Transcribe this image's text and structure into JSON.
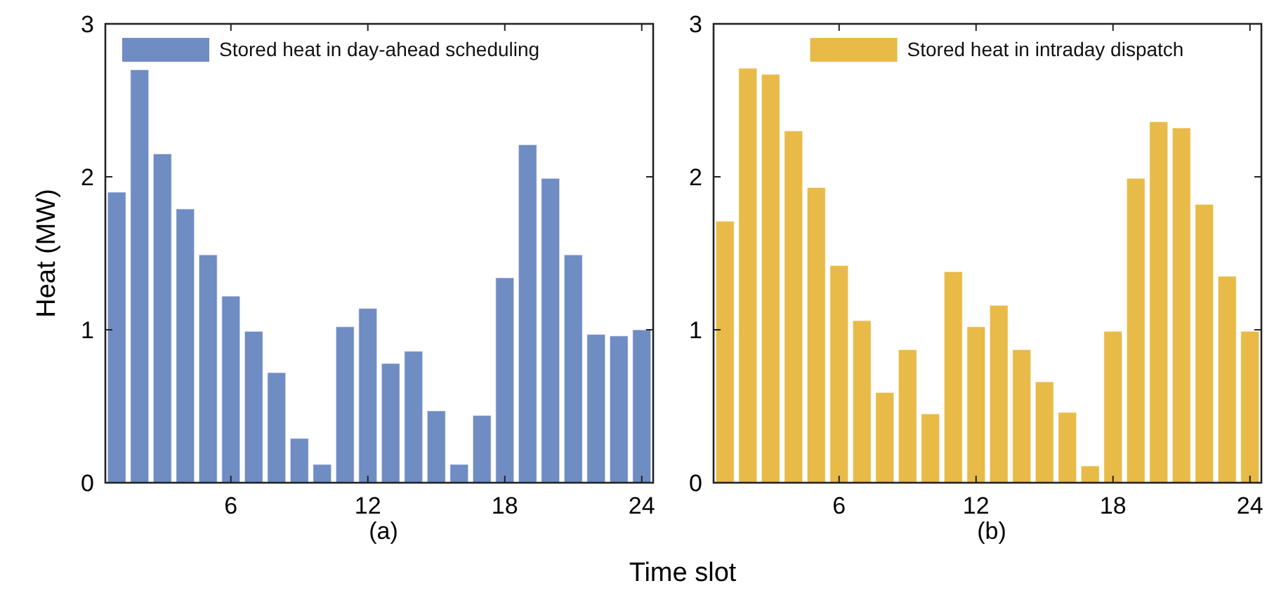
{
  "chart_data": [
    {
      "type": "bar",
      "xlabel": "Time slot",
      "ylabel": "Heat (MW)",
      "annotations": [
        "(a)"
      ],
      "x": [
        1,
        2,
        3,
        4,
        5,
        6,
        7,
        8,
        9,
        10,
        11,
        12,
        13,
        14,
        15,
        16,
        17,
        18,
        19,
        20,
        21,
        22,
        23,
        24
      ],
      "series": [
        {
          "name": "Stored heat in day-ahead scheduling",
          "color": "#6f8cc3",
          "values": [
            1.9,
            2.7,
            2.15,
            1.79,
            1.49,
            1.22,
            0.99,
            0.72,
            0.29,
            0.12,
            1.02,
            1.14,
            0.78,
            0.86,
            0.47,
            0.12,
            0.44,
            1.34,
            2.21,
            1.99,
            1.49,
            0.97,
            0.96,
            1.0
          ]
        }
      ],
      "xlim": [
        0.5,
        24.5
      ],
      "xticks": [
        6,
        12,
        18,
        24
      ],
      "ylim": [
        0,
        3
      ],
      "yticks": [
        0,
        1,
        2,
        3
      ],
      "legend": "top left"
    },
    {
      "type": "bar",
      "annotations": [
        "(b)"
      ],
      "x": [
        1,
        2,
        3,
        4,
        5,
        6,
        7,
        8,
        9,
        10,
        11,
        12,
        13,
        14,
        15,
        16,
        17,
        18,
        19,
        20,
        21,
        22,
        23,
        24
      ],
      "series": [
        {
          "name": "Stored heat in intraday dispatch",
          "color": "#e8ba47",
          "values": [
            1.71,
            2.71,
            2.67,
            2.3,
            1.93,
            1.42,
            1.06,
            0.59,
            0.87,
            0.45,
            1.38,
            1.02,
            1.16,
            0.87,
            0.66,
            0.46,
            0.11,
            0.99,
            1.99,
            2.36,
            2.32,
            1.82,
            1.35,
            0.99
          ]
        }
      ],
      "xlim": [
        0.5,
        24.5
      ],
      "xticks": [
        6,
        12,
        18,
        24
      ],
      "ylim": [
        0,
        3
      ],
      "yticks": [
        0,
        1,
        2,
        3
      ],
      "legend": "top right"
    }
  ]
}
